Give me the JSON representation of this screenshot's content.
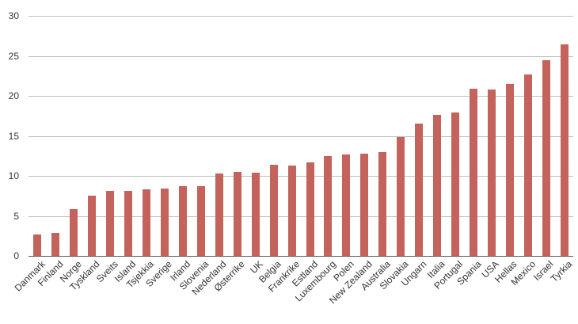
{
  "chart_data": {
    "type": "bar",
    "title": "",
    "xlabel": "",
    "ylabel": "",
    "ylim": [
      0,
      30
    ],
    "yticks": [
      0,
      5,
      10,
      15,
      20,
      25,
      30
    ],
    "grid": true,
    "legend": "none",
    "bar_color": "#c4625c",
    "categories": [
      "Danmark",
      "Finland",
      "Norge",
      "Tyskland",
      "Sveits",
      "Island",
      "Tsjekkia",
      "Sverige",
      "Irland",
      "Slovenia",
      "Nederland",
      "Østerrike",
      "UK",
      "Belgia",
      "Frankrike",
      "Estland",
      "Luxembourg",
      "Polen",
      "New Zealand",
      "Australia",
      "Slovakia",
      "Ungarn",
      "Italia",
      "Portugal",
      "Spania",
      "USA",
      "Hellas",
      "Mexico",
      "Israel",
      "Tyrkia"
    ],
    "values": [
      2.7,
      2.9,
      5.8,
      7.5,
      8.1,
      8.1,
      8.3,
      8.4,
      8.7,
      8.7,
      10.3,
      10.5,
      10.4,
      11.4,
      11.3,
      11.7,
      12.5,
      12.7,
      12.8,
      13.0,
      14.9,
      16.5,
      17.6,
      17.9,
      20.9,
      20.8,
      21.5,
      22.7,
      24.5,
      26.4
    ]
  }
}
